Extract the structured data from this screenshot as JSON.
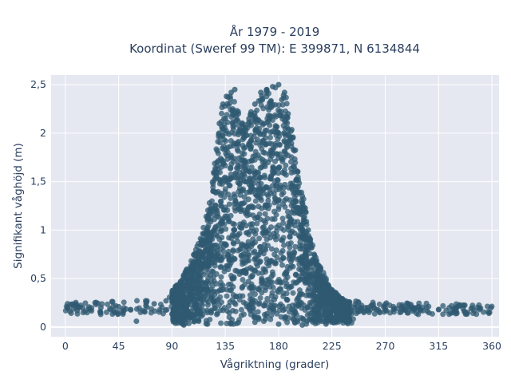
{
  "chart_data": {
    "type": "scatter",
    "title_line1": "År 1979 - 2019",
    "title_line2": "Koordinat (Sweref 99 TM): E 399871, N 6134844",
    "xlabel": "Vågriktning (grader)",
    "ylabel": "Signifikant våghöjd (m)",
    "xlim": [
      -12,
      366
    ],
    "ylim": [
      -0.1,
      2.6
    ],
    "x_ticks": [
      0,
      45,
      90,
      135,
      180,
      225,
      270,
      315,
      360
    ],
    "x_tick_labels": [
      "0",
      "45",
      "90",
      "135",
      "180",
      "225",
      "270",
      "315",
      "360"
    ],
    "y_ticks": [
      0,
      0.5,
      1,
      1.5,
      2,
      2.5
    ],
    "y_tick_labels": [
      "0",
      "0,5",
      "1",
      "1,5",
      "2",
      "2,5"
    ],
    "grid": true,
    "marker_color": "#2f5971",
    "background_color": "#e5e8f0",
    "points": [
      [
        2,
        0.2
      ],
      [
        10,
        0.17
      ],
      [
        20,
        0.19
      ],
      [
        30,
        0.2
      ],
      [
        45,
        0.21
      ],
      [
        55,
        0.18
      ],
      [
        60,
        0.06
      ],
      [
        68,
        0.22
      ],
      [
        75,
        0.24
      ],
      [
        85,
        0.27
      ],
      [
        90,
        0.3
      ],
      [
        95,
        0.42
      ],
      [
        100,
        0.5
      ],
      [
        105,
        0.6
      ],
      [
        110,
        0.75
      ],
      [
        115,
        0.9
      ],
      [
        120,
        1.1
      ],
      [
        125,
        1.4
      ],
      [
        128,
        1.7
      ],
      [
        130,
        2.1
      ],
      [
        133,
        2.3
      ],
      [
        136,
        2.38
      ],
      [
        140,
        2.42
      ],
      [
        143,
        2.45
      ],
      [
        146,
        2.2
      ],
      [
        150,
        2.0
      ],
      [
        155,
        2.15
      ],
      [
        160,
        2.3
      ],
      [
        165,
        2.42
      ],
      [
        170,
        2.45
      ],
      [
        175,
        2.48
      ],
      [
        180,
        2.5
      ],
      [
        185,
        2.42
      ],
      [
        188,
        2.2
      ],
      [
        192,
        1.95
      ],
      [
        196,
        1.6
      ],
      [
        200,
        1.35
      ],
      [
        205,
        1.0
      ],
      [
        210,
        0.75
      ],
      [
        215,
        0.6
      ],
      [
        220,
        0.48
      ],
      [
        225,
        0.35
      ],
      [
        230,
        0.28
      ],
      [
        240,
        0.22
      ],
      [
        255,
        0.2
      ],
      [
        270,
        0.19
      ],
      [
        285,
        0.18
      ],
      [
        300,
        0.17
      ],
      [
        315,
        0.18
      ],
      [
        330,
        0.16
      ],
      [
        345,
        0.17
      ],
      [
        358,
        0.15
      ],
      [
        100,
        0.02
      ],
      [
        120,
        0.03
      ],
      [
        140,
        0.04
      ],
      [
        160,
        0.05
      ],
      [
        180,
        0.03
      ],
      [
        200,
        0.02
      ],
      [
        220,
        0.03
      ],
      [
        240,
        0.06
      ]
    ]
  }
}
